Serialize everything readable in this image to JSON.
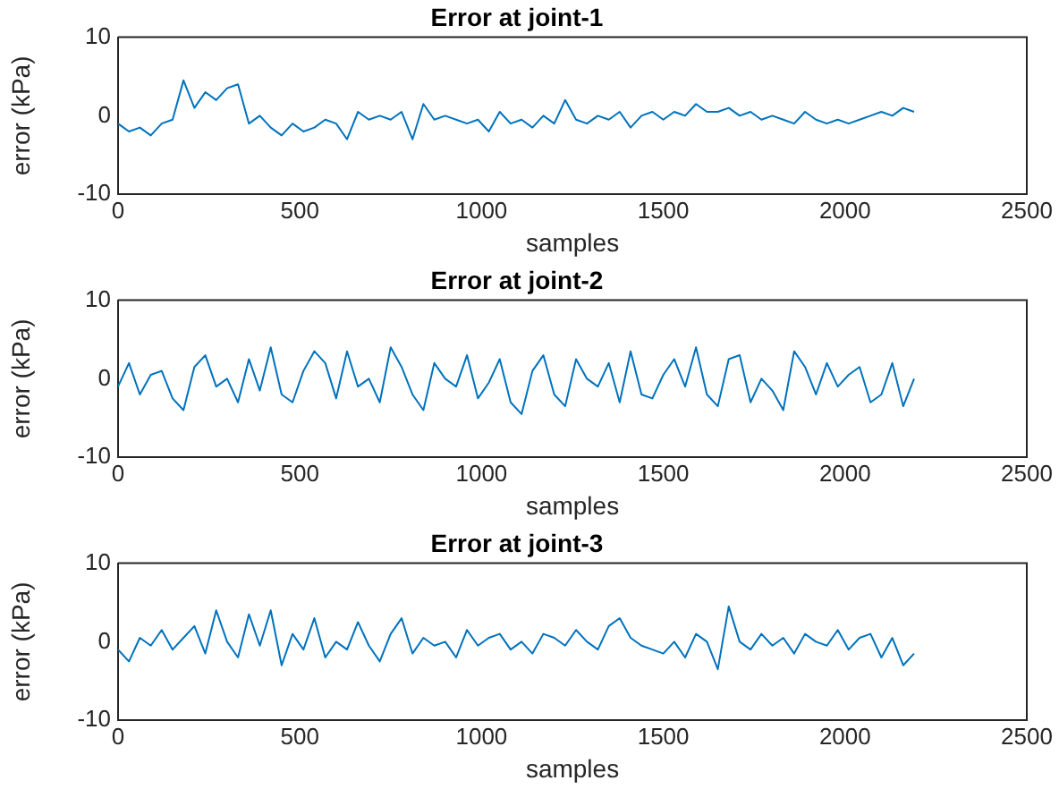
{
  "chart_data": [
    {
      "type": "line",
      "title": "Error at joint-1",
      "xlabel": "samples",
      "ylabel": "error (kPa)",
      "xlim": [
        0,
        2500
      ],
      "xticks": [
        0,
        500,
        1000,
        1500,
        2000,
        2500
      ],
      "ylim": [
        -10,
        10
      ],
      "yticks": [
        -10,
        0,
        10
      ],
      "x": [
        0,
        30,
        60,
        90,
        120,
        150,
        180,
        210,
        240,
        270,
        300,
        330,
        360,
        390,
        420,
        450,
        480,
        510,
        540,
        570,
        600,
        630,
        660,
        690,
        720,
        750,
        780,
        810,
        840,
        870,
        900,
        930,
        960,
        990,
        1020,
        1050,
        1080,
        1110,
        1140,
        1170,
        1200,
        1230,
        1260,
        1290,
        1320,
        1350,
        1380,
        1410,
        1440,
        1470,
        1500,
        1530,
        1560,
        1590,
        1620,
        1650,
        1680,
        1710,
        1740,
        1770,
        1800,
        1830,
        1860,
        1890,
        1920,
        1950,
        1980,
        2010,
        2040,
        2070,
        2100,
        2130,
        2160,
        2190
      ],
      "series": [
        {
          "color": "#0072bd",
          "values": [
            -1,
            -2,
            -1.5,
            -2.5,
            -1,
            -0.5,
            4.5,
            1,
            3,
            2,
            3.5,
            4,
            -1,
            0,
            -1.5,
            -2.5,
            -1,
            -2,
            -1.5,
            -0.5,
            -1,
            -3,
            0.5,
            -0.5,
            0,
            -0.5,
            0.5,
            -3,
            1.5,
            -0.5,
            0,
            -0.5,
            -1,
            -0.5,
            -2,
            0.5,
            -1,
            -0.5,
            -1.5,
            0,
            -1,
            2,
            -0.5,
            -1,
            0,
            -0.5,
            0.5,
            -1.5,
            0,
            0.5,
            -0.5,
            0.5,
            0,
            1.5,
            0.5,
            0.5,
            1,
            0,
            0.5,
            -0.5,
            0,
            -0.5,
            -1,
            0.5,
            -0.5,
            -1,
            -0.5,
            -1,
            -0.5,
            0,
            0.5,
            0,
            1,
            0.5
          ]
        }
      ]
    },
    {
      "type": "line",
      "title": "Error at joint-2",
      "xlabel": "samples",
      "ylabel": "error (kPa)",
      "xlim": [
        0,
        2500
      ],
      "xticks": [
        0,
        500,
        1000,
        1500,
        2000,
        2500
      ],
      "ylim": [
        -10,
        10
      ],
      "yticks": [
        -10,
        0,
        10
      ],
      "x": [
        0,
        30,
        60,
        90,
        120,
        150,
        180,
        210,
        240,
        270,
        300,
        330,
        360,
        390,
        420,
        450,
        480,
        510,
        540,
        570,
        600,
        630,
        660,
        690,
        720,
        750,
        780,
        810,
        840,
        870,
        900,
        930,
        960,
        990,
        1020,
        1050,
        1080,
        1110,
        1140,
        1170,
        1200,
        1230,
        1260,
        1290,
        1320,
        1350,
        1380,
        1410,
        1440,
        1470,
        1500,
        1530,
        1560,
        1590,
        1620,
        1650,
        1680,
        1710,
        1740,
        1770,
        1800,
        1830,
        1860,
        1890,
        1920,
        1950,
        1980,
        2010,
        2040,
        2070,
        2100,
        2130,
        2160,
        2190
      ],
      "series": [
        {
          "color": "#0072bd",
          "values": [
            -1,
            2,
            -2,
            0.5,
            1,
            -2.5,
            -4,
            1.5,
            3,
            -1,
            0,
            -3,
            2.5,
            -1.5,
            4,
            -2,
            -3,
            1,
            3.5,
            2,
            -2.5,
            3.5,
            -1,
            0,
            -3,
            4,
            1.5,
            -2,
            -4,
            2,
            0,
            -1,
            3,
            -2.5,
            -0.5,
            2.5,
            -3,
            -4.5,
            1,
            3,
            -2,
            -3.5,
            2.5,
            0,
            -1,
            2,
            -3,
            3.5,
            -2,
            -2.5,
            0.5,
            2.5,
            -1,
            4,
            -2,
            -3.5,
            2.5,
            3,
            -3,
            0,
            -1.5,
            -4,
            3.5,
            1.5,
            -2,
            2,
            -1,
            0.5,
            1.5,
            -3,
            -2,
            2,
            -3.5,
            0
          ]
        }
      ]
    },
    {
      "type": "line",
      "title": "Error at joint-3",
      "xlabel": "samples",
      "ylabel": "error (kPa)",
      "xlim": [
        0,
        2500
      ],
      "xticks": [
        0,
        500,
        1000,
        1500,
        2000,
        2500
      ],
      "ylim": [
        -10,
        10
      ],
      "yticks": [
        -10,
        0,
        10
      ],
      "x": [
        0,
        30,
        60,
        90,
        120,
        150,
        180,
        210,
        240,
        270,
        300,
        330,
        360,
        390,
        420,
        450,
        480,
        510,
        540,
        570,
        600,
        630,
        660,
        690,
        720,
        750,
        780,
        810,
        840,
        870,
        900,
        930,
        960,
        990,
        1020,
        1050,
        1080,
        1110,
        1140,
        1170,
        1200,
        1230,
        1260,
        1290,
        1320,
        1350,
        1380,
        1410,
        1440,
        1470,
        1500,
        1530,
        1560,
        1590,
        1620,
        1650,
        1680,
        1710,
        1740,
        1770,
        1800,
        1830,
        1860,
        1890,
        1920,
        1950,
        1980,
        2010,
        2040,
        2070,
        2100,
        2130,
        2160,
        2190
      ],
      "series": [
        {
          "color": "#0072bd",
          "values": [
            -1,
            -2.5,
            0.5,
            -0.5,
            1.5,
            -1,
            0.5,
            2,
            -1.5,
            4,
            0,
            -2,
            3.5,
            -0.5,
            4,
            -3,
            1,
            -1,
            3,
            -2,
            0,
            -1,
            2.5,
            -0.5,
            -2.5,
            1,
            3,
            -1.5,
            0.5,
            -0.5,
            0,
            -2,
            1.5,
            -0.5,
            0.5,
            1,
            -1,
            0,
            -1.5,
            1,
            0.5,
            -0.5,
            1.5,
            0,
            -1,
            2,
            3,
            0.5,
            -0.5,
            -1,
            -1.5,
            0,
            -2,
            1,
            0,
            -3.5,
            4.5,
            0,
            -1,
            1,
            -0.5,
            0.5,
            -1.5,
            1,
            0,
            -0.5,
            1.5,
            -1,
            0.5,
            1,
            -2,
            0.5,
            -3,
            -1.5
          ]
        }
      ]
    }
  ]
}
